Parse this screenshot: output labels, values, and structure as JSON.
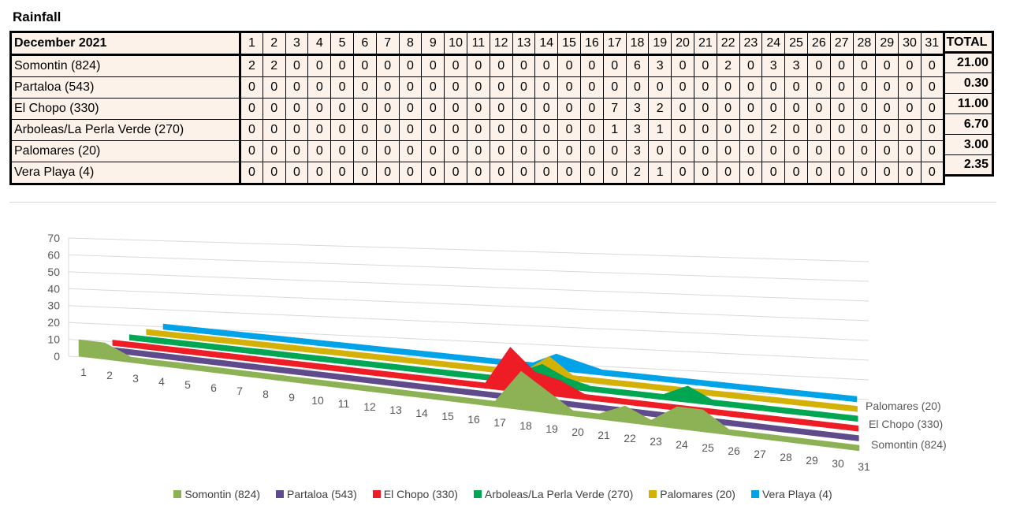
{
  "title": "Rainfall",
  "table": {
    "period_label": "December 2021",
    "days": [
      "1",
      "2",
      "3",
      "4",
      "5",
      "6",
      "7",
      "8",
      "9",
      "10",
      "11",
      "12",
      "13",
      "14",
      "15",
      "16",
      "17",
      "18",
      "19",
      "20",
      "21",
      "22",
      "23",
      "24",
      "25",
      "26",
      "27",
      "28",
      "29",
      "30",
      "31"
    ],
    "total_label": "TOTAL",
    "rows": [
      {
        "name": "Somontin (824)",
        "values": [
          "2",
          "2",
          "0",
          "0",
          "0",
          "0",
          "0",
          "0",
          "0",
          "0",
          "0",
          "0",
          "0",
          "0",
          "0",
          "0",
          "0",
          "6",
          "3",
          "0",
          "0",
          "2",
          "0",
          "3",
          "3",
          "0",
          "0",
          "0",
          "0",
          "0",
          "0"
        ],
        "total": "21.00"
      },
      {
        "name": "Partaloa (543)",
        "values": [
          "0",
          "0",
          "0",
          "0",
          "0",
          "0",
          "0",
          "0",
          "0",
          "0",
          "0",
          "0",
          "0",
          "0",
          "0",
          "0",
          "0",
          "0",
          "0",
          "0",
          "0",
          "0",
          "0",
          "0",
          "0",
          "0",
          "0",
          "0",
          "0",
          "0",
          "0"
        ],
        "total": "0.30"
      },
      {
        "name": "El Chopo (330)",
        "values": [
          "0",
          "0",
          "0",
          "0",
          "0",
          "0",
          "0",
          "0",
          "0",
          "0",
          "0",
          "0",
          "0",
          "0",
          "0",
          "0",
          "7",
          "3",
          "2",
          "0",
          "0",
          "0",
          "0",
          "0",
          "0",
          "0",
          "0",
          "0",
          "0",
          "0",
          "0"
        ],
        "total": "11.00"
      },
      {
        "name": "Arboleas/La Perla Verde (270)",
        "values": [
          "0",
          "0",
          "0",
          "0",
          "0",
          "0",
          "0",
          "0",
          "0",
          "0",
          "0",
          "0",
          "0",
          "0",
          "0",
          "0",
          "1",
          "3",
          "1",
          "0",
          "0",
          "0",
          "0",
          "2",
          "0",
          "0",
          "0",
          "0",
          "0",
          "0",
          "0"
        ],
        "total": "6.70"
      },
      {
        "name": "Palomares (20)",
        "values": [
          "0",
          "0",
          "0",
          "0",
          "0",
          "0",
          "0",
          "0",
          "0",
          "0",
          "0",
          "0",
          "0",
          "0",
          "0",
          "0",
          "0",
          "3",
          "0",
          "0",
          "0",
          "0",
          "0",
          "0",
          "0",
          "0",
          "0",
          "0",
          "0",
          "0",
          "0"
        ],
        "total": "3.00"
      },
      {
        "name": "Vera Playa (4)",
        "values": [
          "0",
          "0",
          "0",
          "0",
          "0",
          "0",
          "0",
          "0",
          "0",
          "0",
          "0",
          "0",
          "0",
          "0",
          "0",
          "0",
          "0",
          "2",
          "1",
          "0",
          "0",
          "0",
          "0",
          "0",
          "0",
          "0",
          "0",
          "0",
          "0",
          "0",
          "0"
        ],
        "total": "2.35"
      }
    ]
  },
  "chart_data": {
    "type": "area",
    "subtype": "3d-area",
    "x": [
      1,
      2,
      3,
      4,
      5,
      6,
      7,
      8,
      9,
      10,
      11,
      12,
      13,
      14,
      15,
      16,
      17,
      18,
      19,
      20,
      21,
      22,
      23,
      24,
      25,
      26,
      27,
      28,
      29,
      30,
      31
    ],
    "ylim": [
      0,
      70
    ],
    "yticks": [
      0,
      10,
      20,
      30,
      40,
      50,
      60,
      70
    ],
    "grid": true,
    "depth_labels": [
      "Palomares (20)",
      "El Chopo (330)",
      "Somontin (824)"
    ],
    "legend_position": "bottom",
    "series": [
      {
        "name": "Somontin (824)",
        "color": "#8db255",
        "values": [
          2,
          2,
          0,
          0,
          0,
          0,
          0,
          0,
          0,
          0,
          0,
          0,
          0,
          0,
          0,
          0,
          0,
          6,
          3,
          0,
          0,
          2,
          0,
          3,
          3,
          0,
          0,
          0,
          0,
          0,
          0
        ]
      },
      {
        "name": "Partaloa (543)",
        "color": "#5f4b8b",
        "values": [
          0,
          0,
          0,
          0,
          0,
          0,
          0,
          0,
          0,
          0,
          0,
          0,
          0,
          0,
          0,
          0,
          0,
          0,
          0,
          0,
          0,
          0,
          0,
          0,
          0,
          0,
          0,
          0,
          0,
          0,
          0
        ]
      },
      {
        "name": "El Chopo (330)",
        "color": "#ee1c25",
        "values": [
          0,
          0,
          0,
          0,
          0,
          0,
          0,
          0,
          0,
          0,
          0,
          0,
          0,
          0,
          0,
          0,
          7,
          3,
          2,
          0,
          0,
          0,
          0,
          0,
          0,
          0,
          0,
          0,
          0,
          0,
          0
        ]
      },
      {
        "name": "Arboleas/La Perla Verde (270)",
        "color": "#00a651",
        "values": [
          0,
          0,
          0,
          0,
          0,
          0,
          0,
          0,
          0,
          0,
          0,
          0,
          0,
          0,
          0,
          0,
          1,
          3,
          1,
          0,
          0,
          0,
          0,
          2,
          0,
          0,
          0,
          0,
          0,
          0,
          0
        ]
      },
      {
        "name": "Palomares (20)",
        "color": "#d4b106",
        "values": [
          0,
          0,
          0,
          0,
          0,
          0,
          0,
          0,
          0,
          0,
          0,
          0,
          0,
          0,
          0,
          0,
          0,
          3,
          0,
          0,
          0,
          0,
          0,
          0,
          0,
          0,
          0,
          0,
          0,
          0,
          0
        ]
      },
      {
        "name": "Vera Playa (4)",
        "color": "#00a2e8",
        "values": [
          0,
          0,
          0,
          0,
          0,
          0,
          0,
          0,
          0,
          0,
          0,
          0,
          0,
          0,
          0,
          0,
          0,
          2,
          1,
          0,
          0,
          0,
          0,
          0,
          0,
          0,
          0,
          0,
          0,
          0,
          0
        ]
      }
    ]
  }
}
